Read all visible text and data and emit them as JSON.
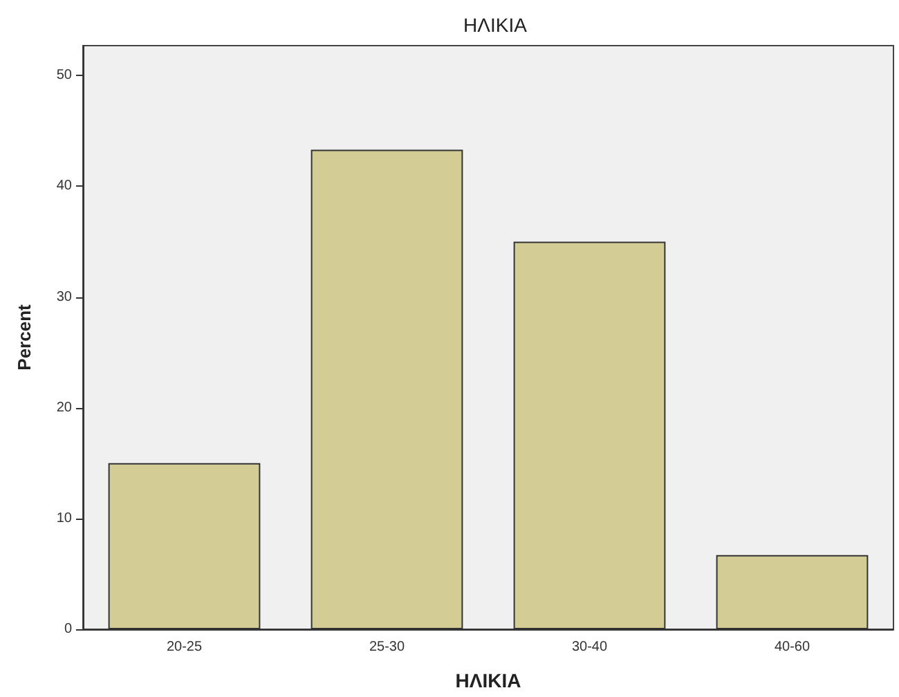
{
  "chart_data": {
    "type": "bar",
    "title": "ΗΛΙΚΙΑ",
    "xlabel": "ΗΛΙΚΙΑ",
    "ylabel": "Percent",
    "categories": [
      "20-25",
      "25-30",
      "30-40",
      "40-60"
    ],
    "values": [
      15.0,
      43.3,
      35.0,
      6.7
    ],
    "color": "#d3cc95",
    "ylim": [
      0,
      52.7
    ],
    "yticks": [
      0,
      10,
      20,
      30,
      40,
      50
    ],
    "grid": false
  }
}
